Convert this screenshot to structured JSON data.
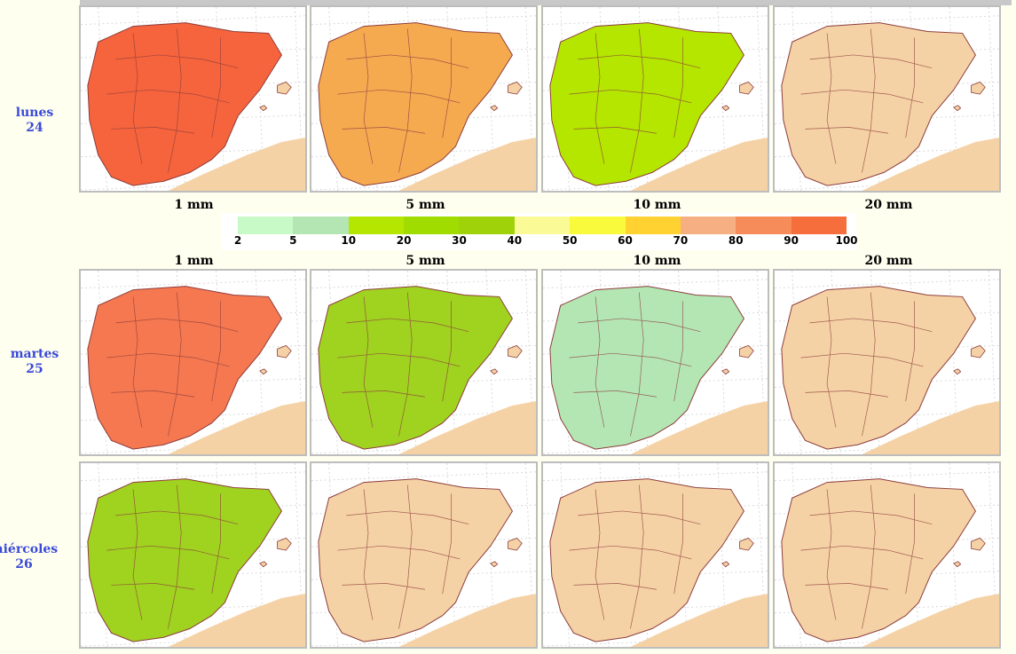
{
  "days": [
    {
      "name": "lunes",
      "num": "24"
    },
    {
      "name": "martes",
      "num": "25"
    },
    {
      "name": "miércoles",
      "num": "26"
    }
  ],
  "thresholds_top": [
    "1 mm",
    "5 mm",
    "10 mm",
    "20 mm"
  ],
  "thresholds_mid": [
    "1 mm",
    "5 mm",
    "10 mm",
    "20 mm"
  ],
  "legend": {
    "ticks": [
      "2",
      "5",
      "10",
      "20",
      "30",
      "40",
      "50",
      "60",
      "70",
      "80",
      "90",
      "100"
    ],
    "colors": [
      "#c8fac8",
      "#b4e6b4",
      "#b4e600",
      "#a0dc00",
      "#a0d20a",
      "#fafa96",
      "#fafa3c",
      "#ffd232",
      "#f5af82",
      "#f58c5a",
      "#f56e3c"
    ]
  },
  "colors": {
    "land_dry": "#f5d2a5",
    "sea": "#ffffff",
    "border": "#8c3c3c",
    "day_label": "#3a4ad8"
  },
  "maps": [
    [
      "#f5643c",
      "#f5aa50",
      "#b4e600",
      "#f5d2a5"
    ],
    [
      "#f57850",
      "#a0d220",
      "#b4e6b4",
      "#f5d2a5"
    ],
    [
      "#a0d220",
      "#f5d2a5",
      "#f5d2a5",
      "#f5d2a5"
    ]
  ]
}
